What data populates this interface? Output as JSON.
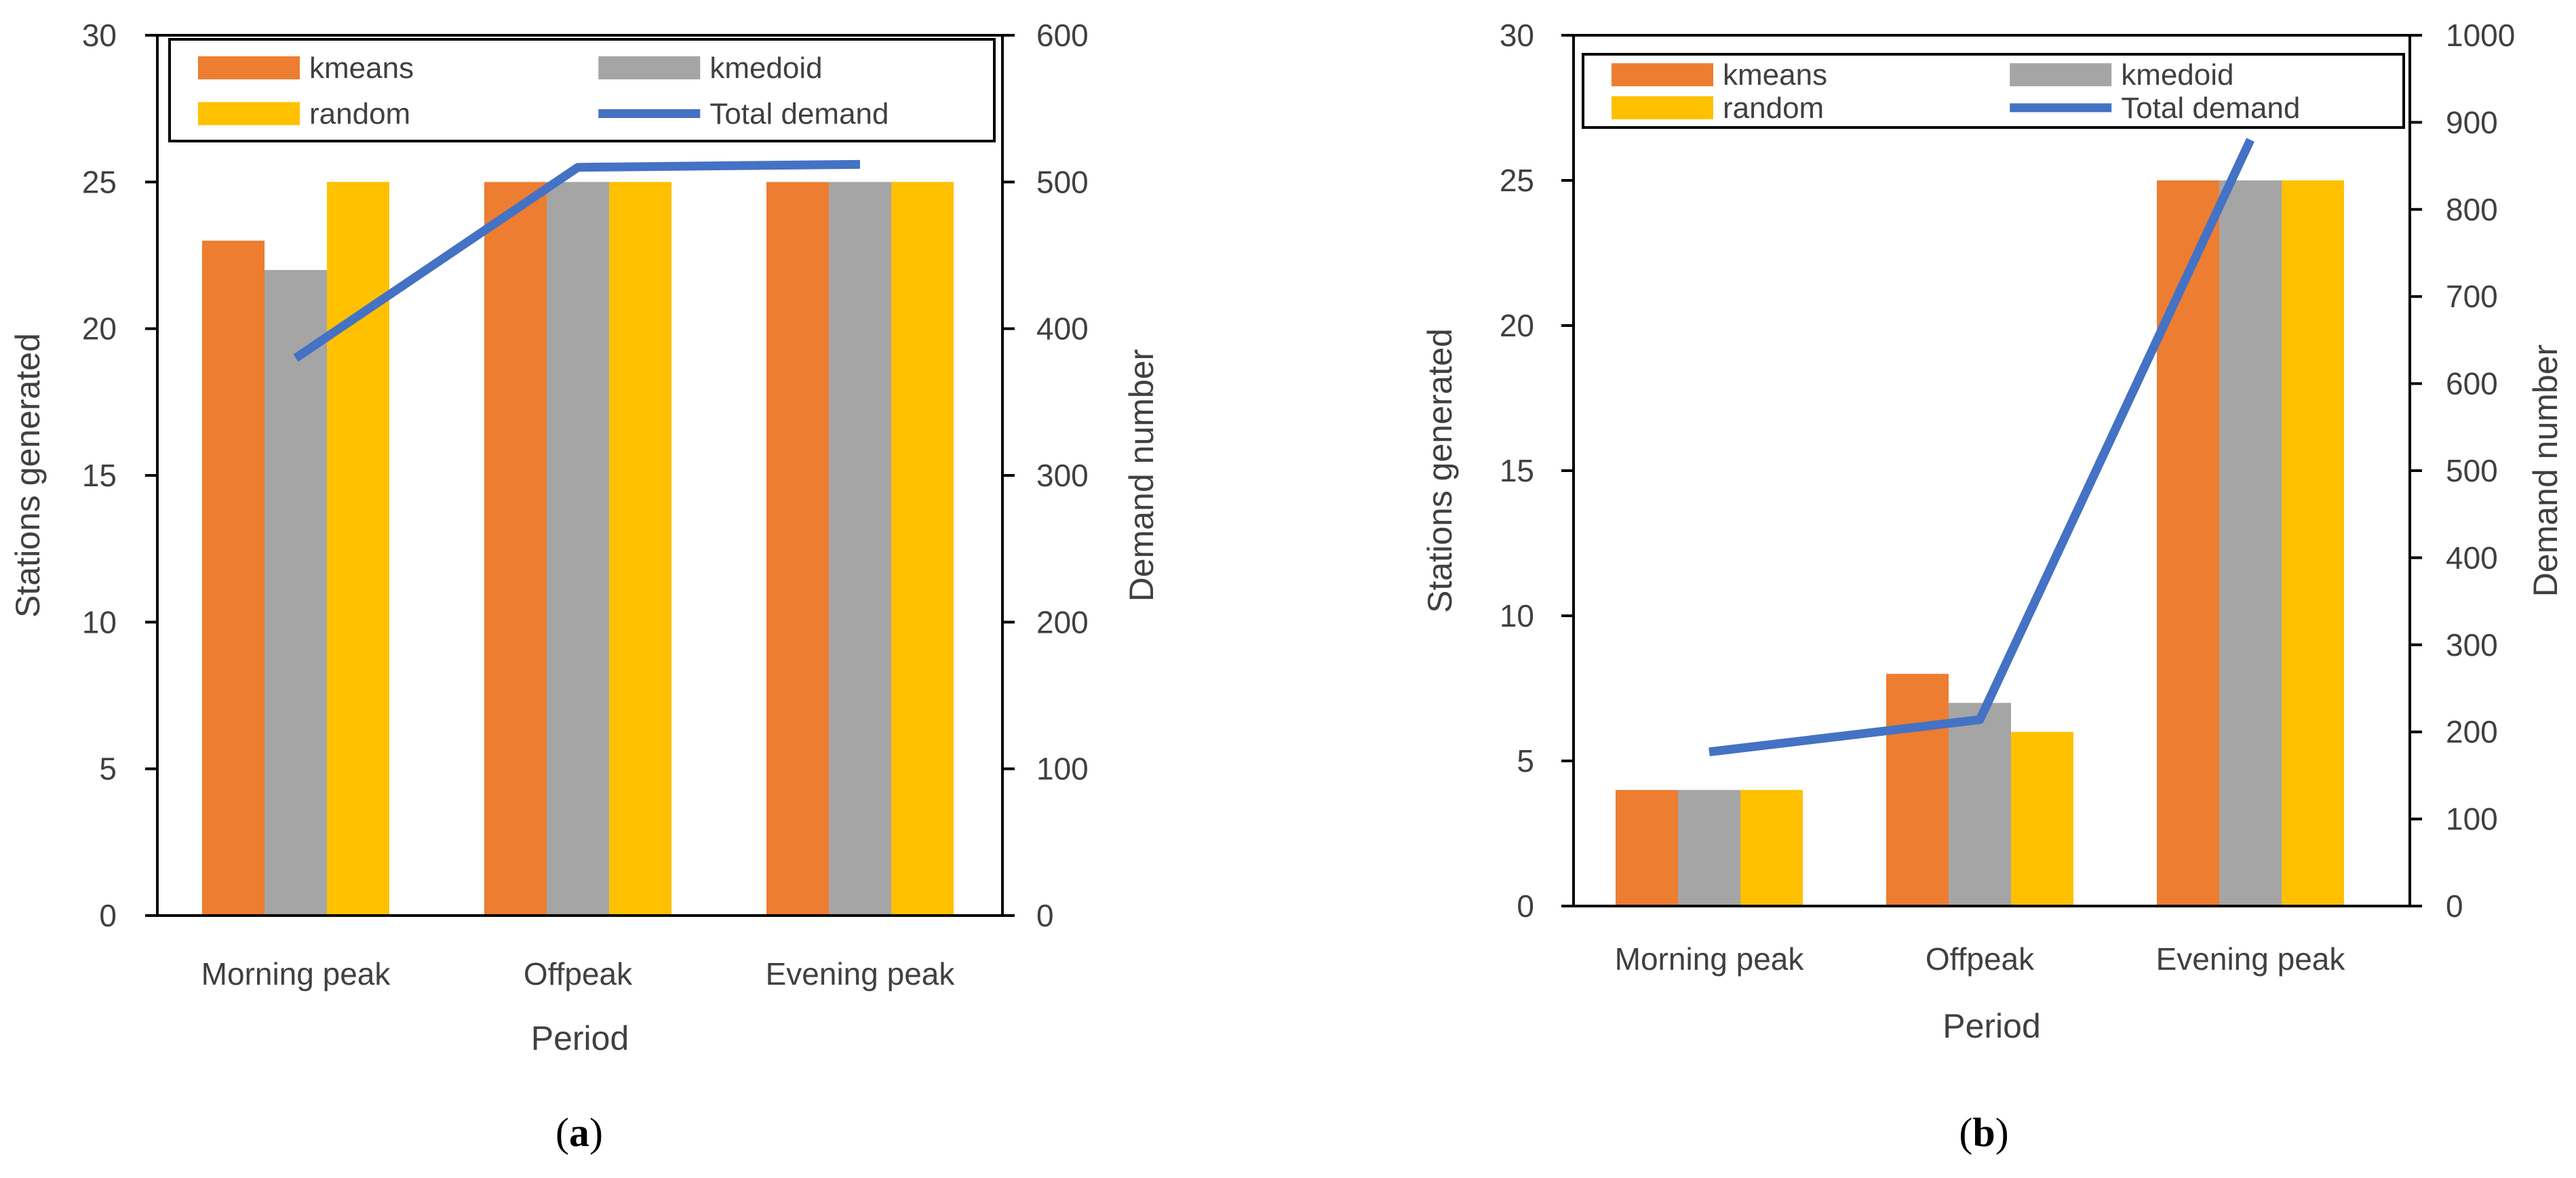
{
  "colors": {
    "kmeans": "#ED7D31",
    "kmedoid": "#A5A5A5",
    "random": "#FFC000",
    "total_demand": "#4472C4"
  },
  "chart_data": [
    {
      "type": "bar",
      "panel": "a",
      "panel_label_open": "(",
      "panel_label_letter": "a",
      "panel_label_close": ")",
      "categories": [
        "Morning peak",
        "Offpeak",
        "Evening peak"
      ],
      "series": [
        {
          "name": "kmeans",
          "values": [
            23,
            25,
            25
          ],
          "axis": "left"
        },
        {
          "name": "kmedoid",
          "values": [
            22,
            25,
            25
          ],
          "axis": "left"
        },
        {
          "name": "random",
          "values": [
            25,
            25,
            25
          ],
          "axis": "left"
        },
        {
          "name": "Total demand",
          "type": "line",
          "values": [
            380,
            510,
            512
          ],
          "axis": "right"
        }
      ],
      "xlabel": "Period",
      "ylabel": "Stations generated",
      "y2label": "Demand number",
      "ylim": [
        0,
        30
      ],
      "yticks": [
        0,
        5,
        10,
        15,
        20,
        25,
        30
      ],
      "y2lim": [
        0,
        600
      ],
      "y2ticks": [
        0,
        100,
        200,
        300,
        400,
        500,
        600
      ],
      "legend_position": "top",
      "grid": false
    },
    {
      "type": "bar",
      "panel": "b",
      "panel_label_open": "(",
      "panel_label_letter": "b",
      "panel_label_close": ")",
      "categories": [
        "Morning peak",
        "Offpeak",
        "Evening peak"
      ],
      "series": [
        {
          "name": "kmeans",
          "values": [
            4,
            8,
            25
          ],
          "axis": "left"
        },
        {
          "name": "kmedoid",
          "values": [
            4,
            7,
            25
          ],
          "axis": "left"
        },
        {
          "name": "random",
          "values": [
            4,
            6,
            25
          ],
          "axis": "left"
        },
        {
          "name": "Total demand",
          "type": "line",
          "values": [
            177,
            214,
            880
          ],
          "axis": "right"
        }
      ],
      "xlabel": "Period",
      "ylabel": "Stations generated",
      "y2label": "Demand number",
      "ylim": [
        0,
        30
      ],
      "yticks": [
        0,
        5,
        10,
        15,
        20,
        25,
        30
      ],
      "y2lim": [
        0,
        1000
      ],
      "y2ticks": [
        0,
        100,
        200,
        300,
        400,
        500,
        600,
        700,
        800,
        900,
        1000
      ],
      "legend_position": "top",
      "grid": false
    }
  ]
}
